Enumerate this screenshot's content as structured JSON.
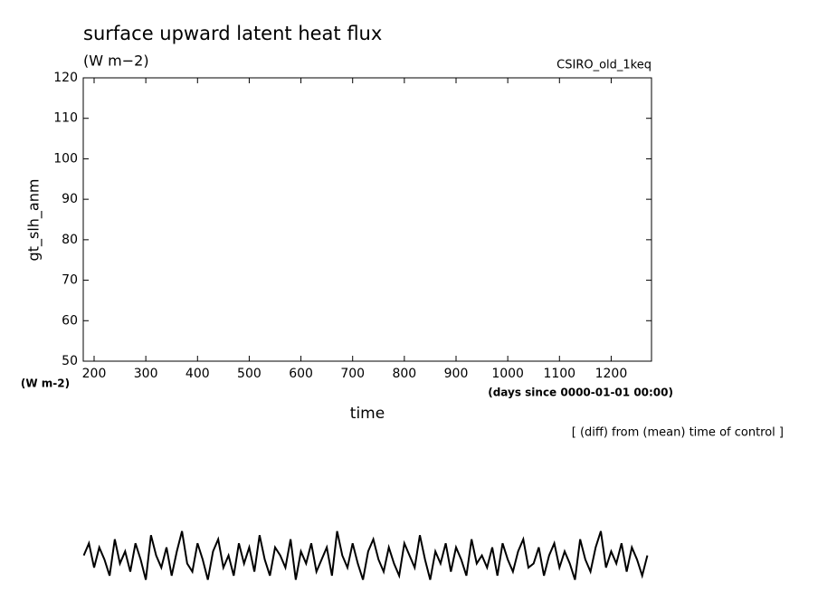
{
  "chart_data": {
    "type": "line",
    "title": "surface upward latent heat flux",
    "subtitle": "(W m−2)",
    "annotation_right": "CSIRO_old_1keq",
    "y_label": "gt_slh_anm",
    "y_unit": "(W m-2)",
    "x_unit": "(days since 0000-01-01 00:00)",
    "x_label": "time",
    "note": "[ (diff) from (mean) time of control ]",
    "xlim": [
      179,
      1278
    ],
    "ylim": [
      50,
      120
    ],
    "xticks": [
      200,
      300,
      400,
      500,
      600,
      700,
      800,
      900,
      1000,
      1100,
      1200
    ],
    "yticks": [
      50,
      60,
      70,
      80,
      90,
      100,
      110,
      120
    ],
    "x": [
      180,
      190,
      200,
      210,
      220,
      230,
      240,
      250,
      260,
      270,
      280,
      290,
      300,
      310,
      320,
      330,
      340,
      350,
      360,
      370,
      380,
      390,
      400,
      410,
      420,
      430,
      440,
      450,
      460,
      470,
      480,
      490,
      500,
      510,
      520,
      530,
      540,
      550,
      560,
      570,
      580,
      590,
      600,
      610,
      620,
      630,
      640,
      650,
      660,
      670,
      680,
      690,
      700,
      710,
      720,
      730,
      740,
      750,
      760,
      770,
      780,
      790,
      800,
      810,
      820,
      830,
      840,
      850,
      860,
      870,
      880,
      890,
      900,
      910,
      920,
      930,
      940,
      950,
      960,
      970,
      980,
      990,
      1000,
      1010,
      1020,
      1030,
      1040,
      1050,
      1060,
      1070,
      1080,
      1090,
      1100,
      1110,
      1120,
      1130,
      1140,
      1150,
      1160,
      1170,
      1180,
      1190,
      1200,
      1210,
      1220,
      1230,
      1240,
      1250,
      1260,
      1270
    ],
    "series": [
      {
        "color": "#000000",
        "values": [
          2,
          5,
          -1,
          4,
          1,
          -3,
          6,
          0,
          3,
          -2,
          5,
          1,
          -4,
          7,
          2,
          -1,
          4,
          -3,
          3,
          8,
          0,
          -2,
          5,
          1,
          -4,
          3,
          6,
          -1,
          2,
          -3,
          5,
          0,
          4,
          -2,
          7,
          1,
          -3,
          4,
          2,
          -1,
          6,
          -4,
          3,
          0,
          5,
          -2,
          1,
          4,
          -3,
          8,
          2,
          -1,
          5,
          0,
          -4,
          3,
          6,
          1,
          -2,
          4,
          0,
          -3,
          5,
          2,
          -1,
          7,
          1,
          -4,
          3,
          0,
          5,
          -2,
          4,
          1,
          -3,
          6,
          0,
          2,
          -1,
          4,
          -3,
          5,
          1,
          -2,
          3,
          6,
          -1,
          0,
          4,
          -3,
          2,
          5,
          -1,
          3,
          0,
          -4,
          6,
          1,
          -2,
          4,
          8,
          -1,
          3,
          0,
          5,
          -2,
          4,
          1,
          -3,
          2
        ]
      }
    ]
  }
}
